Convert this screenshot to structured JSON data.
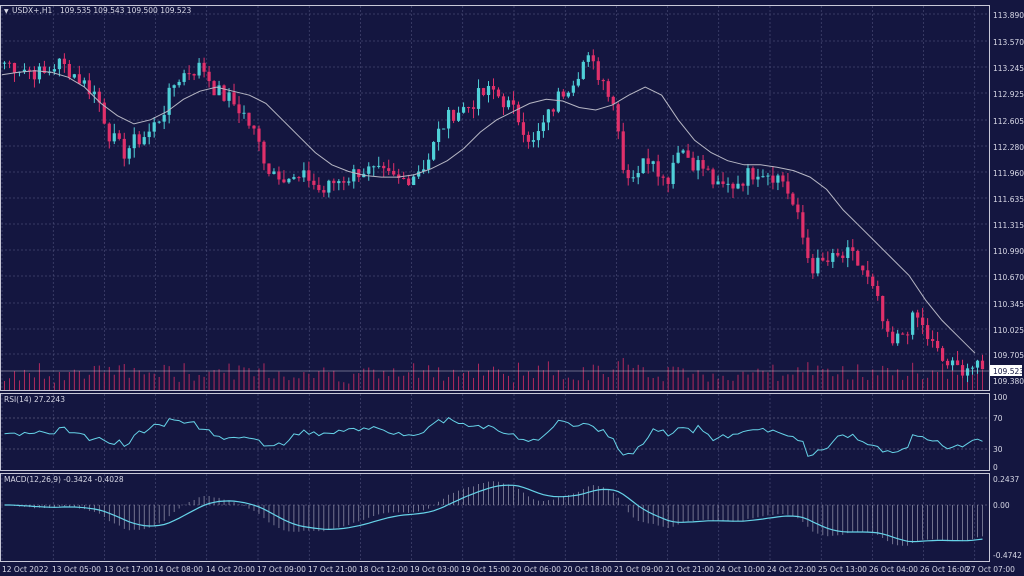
{
  "header": {
    "symbol_label": "USDX+,H1",
    "ohlc_label": "109.535 109.543 109.500 109.523"
  },
  "price_panel": {
    "price_ticks": [
      "113.890",
      "113.570",
      "113.245",
      "112.925",
      "112.605",
      "112.280",
      "111.960",
      "111.635",
      "111.315",
      "110.990",
      "110.670",
      "110.345",
      "110.025",
      "109.705",
      "109.380"
    ],
    "current_price_label": "109.523",
    "price_min": 109.3,
    "price_max": 113.99
  },
  "rsi_panel": {
    "label": "RSI(14) 27.2243",
    "levels": [
      "100",
      "70",
      "30",
      "0"
    ]
  },
  "macd_panel": {
    "label": "MACD(12,26,9) -0.3424 -0.4028",
    "levels": [
      "0.2437",
      "0.00",
      "-0.4742"
    ]
  },
  "time_axis": {
    "labels": [
      "12 Oct 2022",
      "13 Oct 05:00",
      "13 Oct 17:00",
      "14 Oct 08:00",
      "14 Oct 20:00",
      "17 Oct 09:00",
      "17 Oct 21:00",
      "18 Oct 12:00",
      "19 Oct 03:00",
      "19 Oct 15:00",
      "20 Oct 06:00",
      "20 Oct 18:00",
      "21 Oct 09:00",
      "21 Oct 21:00",
      "24 Oct 10:00",
      "24 Oct 22:00",
      "25 Oct 13:00",
      "26 Oct 04:00",
      "26 Oct 16:00",
      "27 Oct 07:00"
    ]
  },
  "chart_data": {
    "type": "line",
    "close_path": [
      113.3,
      113.25,
      113.2,
      113.15,
      113.3,
      113.2,
      113.05,
      112.9,
      112.4,
      112.2,
      112.35,
      112.45,
      112.7,
      113.1,
      113.2,
      113.25,
      112.95,
      112.85,
      112.7,
      112.4,
      112.0,
      111.95,
      111.85,
      111.9,
      111.7,
      111.85,
      111.9,
      112.0,
      111.95,
      111.9,
      111.85,
      111.95,
      112.1,
      112.5,
      112.7,
      112.75,
      112.9,
      112.95,
      112.8,
      112.6,
      112.3,
      112.6,
      112.9,
      113.1,
      113.35,
      113.15,
      112.9,
      111.9,
      112.0,
      112.2,
      111.8,
      112.3,
      112.1,
      112.0,
      111.75,
      111.8,
      111.9,
      112.0,
      111.95,
      111.85,
      111.4,
      110.8,
      110.85,
      110.9,
      110.95,
      110.75,
      110.4,
      109.8,
      110.0,
      110.2,
      109.9,
      109.65,
      109.55,
      109.6,
      109.52
    ],
    "ma_path": [
      113.15,
      113.18,
      113.2,
      113.18,
      113.12,
      113.0,
      112.8,
      112.65,
      112.55,
      112.6,
      112.7,
      112.85,
      112.95,
      113.0,
      112.95,
      112.9,
      112.8,
      112.6,
      112.4,
      112.2,
      112.05,
      111.97,
      111.92,
      111.9,
      111.9,
      111.93,
      112.0,
      112.1,
      112.25,
      112.45,
      112.6,
      112.7,
      112.8,
      112.85,
      112.83,
      112.75,
      112.72,
      112.78,
      112.9,
      113.0,
      112.9,
      112.6,
      112.35,
      112.2,
      112.1,
      112.05,
      112.05,
      112.02,
      111.98,
      111.9,
      111.75,
      111.5,
      111.3,
      111.1,
      110.9,
      110.7,
      110.4,
      110.15,
      109.95,
      109.75
    ]
  }
}
